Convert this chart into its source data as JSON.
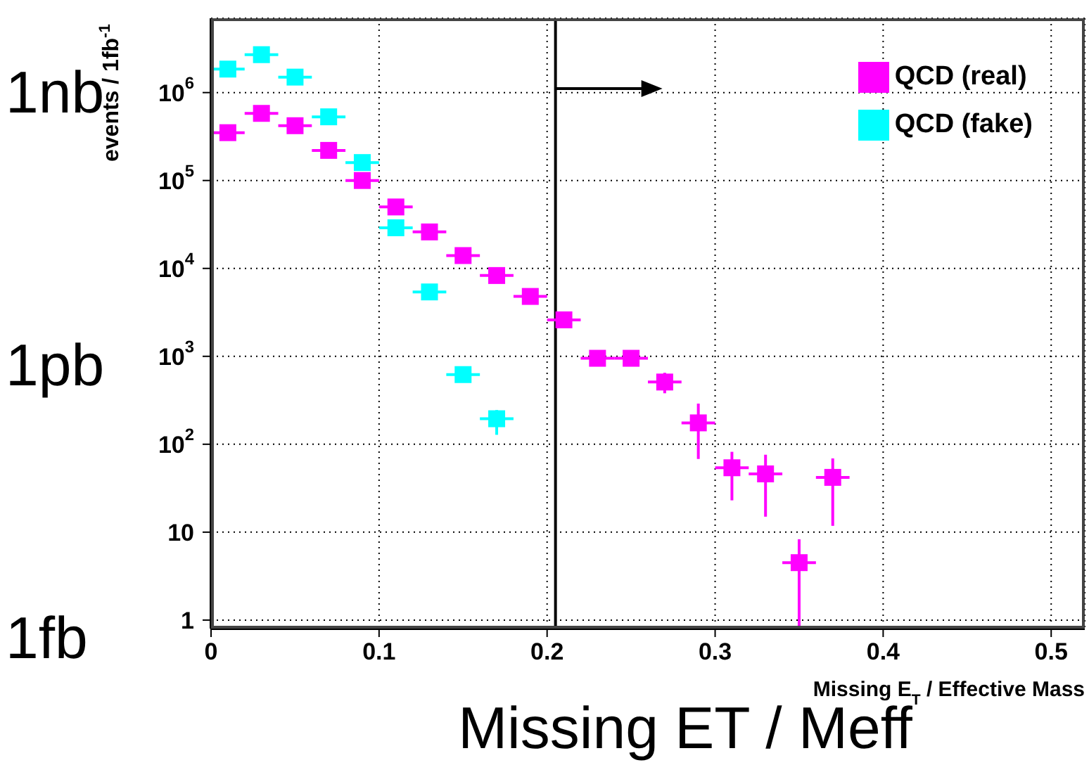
{
  "chart_data": {
    "type": "scatter",
    "ylabel": "events / 1fb$^{-1}$",
    "xlabel": "Missing E$_{T}$ / Effective Mass",
    "xlim": [
      0,
      0.52
    ],
    "xticks": [
      0,
      0.1,
      0.2,
      0.3,
      0.4,
      0.5
    ],
    "ylim": [
      0.8,
      7000000
    ],
    "log": "y",
    "yticks": [
      1,
      10,
      {
        "value": 100,
        "label": "10$^{2}$"
      },
      {
        "value": 1000,
        "label": "10$^{3}$"
      },
      {
        "value": 10000,
        "label": "10$^{4}$"
      },
      {
        "value": 100000,
        "label": "10$^{5}$"
      },
      {
        "value": 1000000,
        "label": "10$^{6}$"
      }
    ],
    "grid": true,
    "legend": "top right",
    "marker": "square",
    "series": [
      {
        "name": "QCD (real)",
        "color": "#ff00ff",
        "x": [
          0.01,
          0.03,
          0.05,
          0.07,
          0.09,
          0.11,
          0.13,
          0.15,
          0.17,
          0.19,
          0.21,
          0.23,
          0.25,
          0.27,
          0.29,
          0.31,
          0.33,
          0.35,
          0.37
        ],
        "values": [
          350000,
          580000,
          420000,
          220000,
          100000,
          50000,
          26000,
          14000,
          8300,
          4800,
          2600,
          950,
          950,
          510,
          175,
          54,
          46,
          4.5,
          42
        ],
        "xerrors": [
          0.01,
          0.01,
          0.01,
          0.01,
          0.01,
          0.01,
          0.01,
          0.01,
          0.01,
          0.01,
          0.01,
          0.01,
          0.01,
          0.01,
          0.01,
          0.01,
          0.01,
          0.01,
          0.01
        ],
        "errors": [
          null,
          null,
          null,
          null,
          null,
          null,
          null,
          null,
          null,
          null,
          null,
          null,
          null,
          [
            380,
            650
          ],
          [
            68,
            290
          ],
          [
            23,
            82
          ],
          [
            15,
            76
          ],
          [
            0.8,
            8.3
          ],
          [
            11.8,
            69
          ]
        ]
      },
      {
        "name": "QCD (fake)",
        "color": "#00ffff",
        "x": [
          0.01,
          0.03,
          0.05,
          0.07,
          0.09,
          0.11,
          0.13,
          0.15,
          0.17
        ],
        "values": [
          1850000,
          2700000,
          1500000,
          530000,
          160000,
          29000,
          5400,
          620,
          195
        ],
        "xerrors": [
          0.01,
          0.01,
          0.01,
          0.01,
          0.01,
          0.01,
          0.01,
          0.01,
          0.01
        ],
        "errors": [
          null,
          null,
          null,
          null,
          null,
          null,
          null,
          null,
          [
            128,
            245
          ]
        ]
      }
    ],
    "ref_lines": [
      {
        "axis": "x",
        "value": 0.205,
        "color": "#000000"
      }
    ],
    "annotations": [
      "1nb",
      "1pb",
      "1fb",
      "Missing ET / Meff"
    ]
  }
}
